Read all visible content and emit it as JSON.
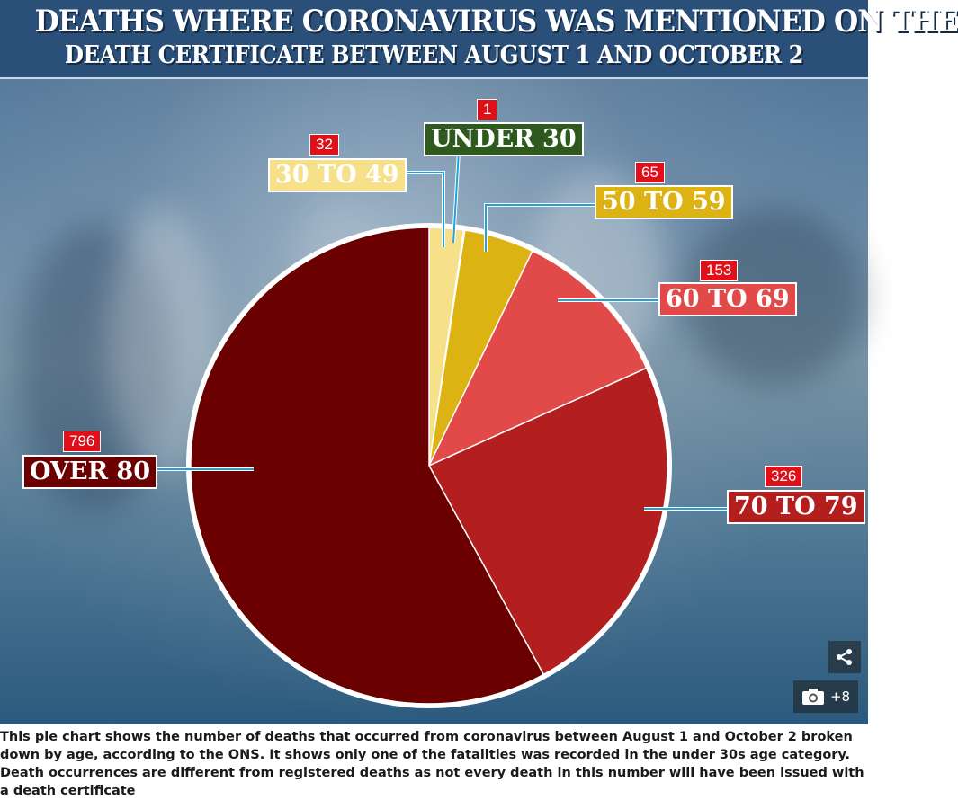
{
  "title": {
    "line1": "DEATHS WHERE CORONAVIRUS WAS MENTIONED ON THE",
    "line2": "DEATH CERTIFICATE BETWEEN AUGUST 1 AND OCTOBER 2"
  },
  "chart_data": {
    "type": "pie",
    "title": "DEATHS WHERE CORONAVIRUS WAS MENTIONED ON THE DEATH CERTIFICATE BETWEEN AUGUST 1 AND OCTOBER 2",
    "start_angle_deg": 0,
    "direction": "clockwise",
    "slices": [
      {
        "label": "30 TO 49",
        "value": 32,
        "color": "#f6e08a",
        "label_text_color": "#ffffff"
      },
      {
        "label": "UNDER 30",
        "value": 1,
        "color": "#2f5a1f",
        "label_text_color": "#ffffff"
      },
      {
        "label": "50 TO 59",
        "value": 65,
        "color": "#ddb314",
        "label_text_color": "#ffffff"
      },
      {
        "label": "60 TO 69",
        "value": 153,
        "color": "#e24a4a",
        "label_text_color": "#ffffff"
      },
      {
        "label": "70 TO 79",
        "value": 326,
        "color": "#b31f1f",
        "label_text_color": "#ffffff"
      },
      {
        "label": "OVER 80",
        "value": 796,
        "color": "#6b0000",
        "label_text_color": "#ffffff"
      }
    ],
    "grid": false,
    "legend": "none"
  },
  "controls": {
    "share_icon": "share-icon",
    "gallery_icon": "camera-icon",
    "gallery_count": "+8"
  },
  "caption": "This pie chart shows the number of deaths that occurred from coronavirus between August 1 and October 2 broken down by age, according to the ONS. It shows only one of the fatalities was recorded in the under 30s age category. Death occurrences are different from registered deaths as not every death in this number will have been issued with a death certificate"
}
